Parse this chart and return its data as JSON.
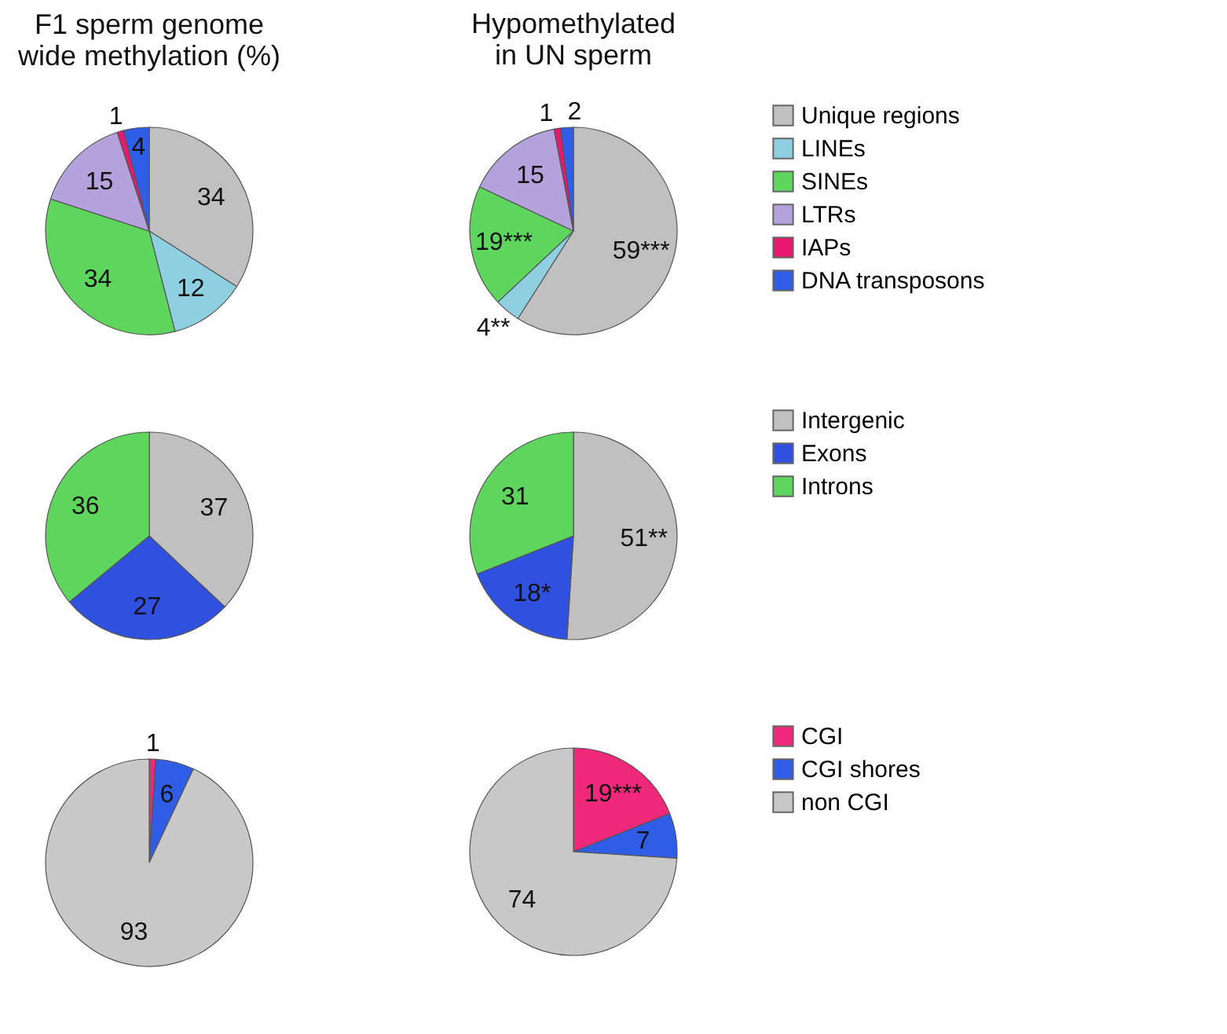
{
  "chart_data": [
    {
      "type": "pie",
      "title": "F1 sperm genome wide methylation (%)",
      "categories": [
        null,
        null,
        null,
        null,
        null,
        null
      ],
      "values": [
        34,
        12,
        34,
        15,
        1,
        4
      ],
      "colors": [
        "#c0c0c0",
        "#8ed0e2",
        "#5ed65e",
        "#b3a2dc",
        "#e8186d",
        "#2f5de6"
      ],
      "data_labels": true,
      "legend": false
    },
    {
      "type": "pie",
      "title": "Hypomethylated in UN sperm",
      "categories": [
        "Unique regions",
        "LINEs",
        "SINEs",
        "LTRs",
        "IAPs",
        "DNA transposons"
      ],
      "values": [
        59,
        4,
        19,
        15,
        1,
        2
      ],
      "value_labels": [
        "59***",
        "4**",
        "19***",
        "15",
        "1",
        "2"
      ],
      "colors": [
        "#c0c0c0",
        "#8ed0e2",
        "#5ed65e",
        "#b3a2dc",
        "#e8186d",
        "#2f5de6"
      ],
      "legend": "right"
    },
    {
      "type": "pie",
      "categories": [
        null,
        null,
        null
      ],
      "values": [
        37,
        27,
        36
      ],
      "colors": [
        "#c0c0c0",
        "#3050e0",
        "#5ed65e"
      ],
      "data_labels": true,
      "legend": false
    },
    {
      "type": "pie",
      "categories": [
        "Intergenic",
        "Exons",
        "Introns"
      ],
      "values": [
        51,
        18,
        31
      ],
      "value_labels": [
        "51**",
        "18*",
        "31"
      ],
      "colors": [
        "#c0c0c0",
        "#3050e0",
        "#5ed65e"
      ],
      "legend": "right"
    },
    {
      "type": "pie",
      "categories": [
        null,
        null,
        null
      ],
      "values": [
        1,
        6,
        93
      ],
      "colors": [
        "#f0287a",
        "#2f5de6",
        "#c8c8c8"
      ],
      "data_labels": true,
      "legend": false
    },
    {
      "type": "pie",
      "categories": [
        "CGI",
        "CGI shores",
        "non CGI"
      ],
      "values": [
        19,
        7,
        74
      ],
      "value_labels": [
        "19***",
        "7",
        "74"
      ],
      "colors": [
        "#f0287a",
        "#2f5de6",
        "#c8c8c8"
      ],
      "legend": "right"
    }
  ]
}
